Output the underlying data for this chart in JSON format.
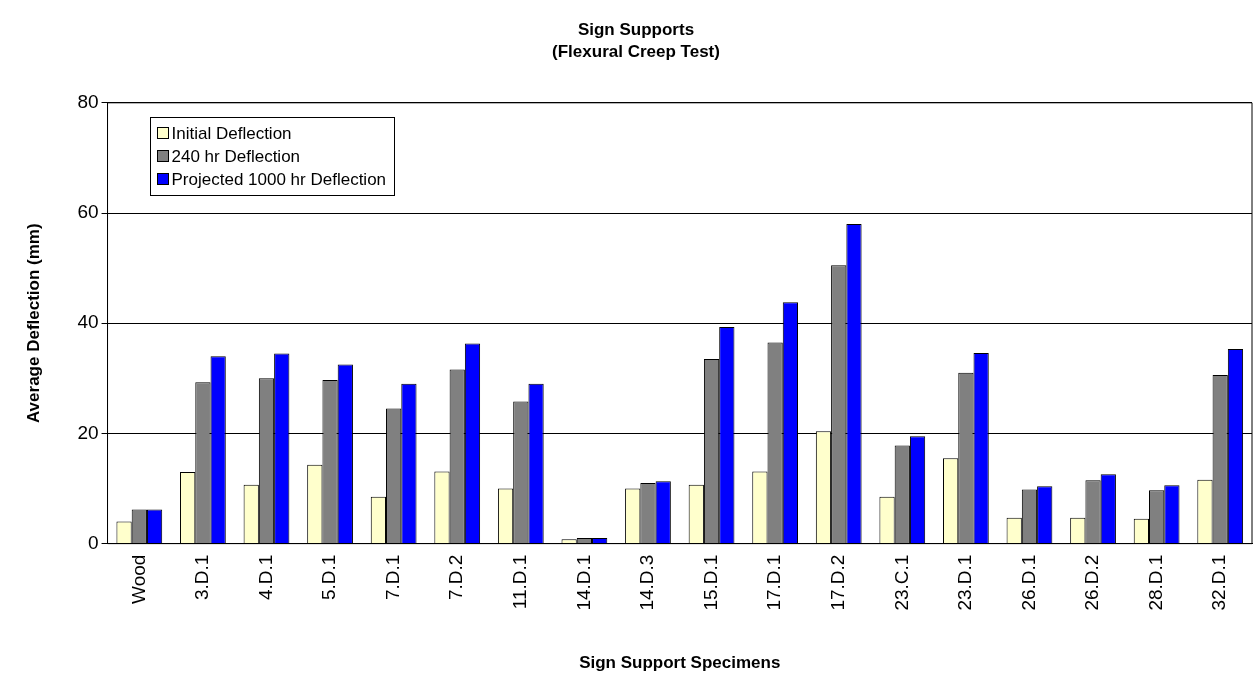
{
  "chart_data": {
    "type": "bar",
    "title": "Sign Supports",
    "subtitle": "(Flexural Creep Test)",
    "xlabel": "Sign Support Specimens",
    "ylabel": "Average Deflection (mm)",
    "categories": [
      "Wood",
      "3.D.1",
      "4.D.1",
      "5.D.1",
      "7.D.1",
      "7.D.2",
      "11.D.1",
      "14.D.1",
      "14.D.3",
      "15.D.1",
      "17.D.1",
      "17.D.2",
      "23.C.1",
      "23.D.1",
      "26.D.1",
      "26.D.2",
      "28.D.1",
      "32.D.1"
    ],
    "series": [
      {
        "name": "Initial Deflection",
        "color": "#ffffcc",
        "values": [
          4,
          13,
          10.7,
          14.3,
          8.5,
          13.1,
          10,
          0.8,
          10,
          10.7,
          13.1,
          20.4,
          8.5,
          15.5,
          4.7,
          4.7,
          4.5,
          11.6
        ]
      },
      {
        "name": "240 hr Deflection",
        "color": "#808080",
        "values": [
          6.2,
          29.3,
          30,
          29.7,
          24.5,
          31.6,
          25.8,
          1,
          11,
          33.5,
          36.5,
          50.5,
          17.8,
          31,
          9.8,
          11.5,
          9.7,
          30.6
        ]
      },
      {
        "name": "Projected 1000 hr Deflection",
        "color": "#0000ff",
        "values": [
          6.2,
          34,
          34.5,
          32.5,
          29,
          36.3,
          29,
          1,
          11.3,
          39.3,
          43.8,
          58,
          19.5,
          34.6,
          10.4,
          12.6,
          10.6,
          35.3
        ]
      }
    ],
    "ylim": [
      0,
      80
    ],
    "yticks": [
      0,
      20,
      40,
      60,
      80
    ],
    "grid": "y",
    "legend": "top left"
  }
}
